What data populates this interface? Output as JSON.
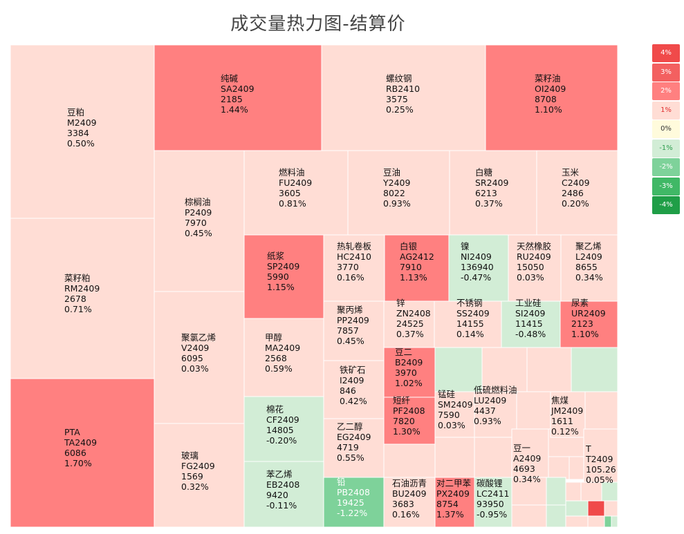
{
  "title": "成交量热力图-结算价",
  "colors": {
    "up4": "#f04a4a",
    "up3": "#f36060",
    "up2": "#ff8080",
    "up1": "#ffddd5",
    "zero": "#fffbdc",
    "down1": "#d2edd6",
    "down2": "#7ed29a",
    "down3": "#40b866",
    "down4": "#1f9e47"
  },
  "legend": [
    {
      "label": "4%",
      "color": "up4",
      "text": "#ffffff"
    },
    {
      "label": "3%",
      "color": "up3",
      "text": "#ffffff"
    },
    {
      "label": "2%",
      "color": "up2",
      "text": "#ffffff"
    },
    {
      "label": "1%",
      "color": "up1",
      "text": "#e03030"
    },
    {
      "label": "0%",
      "color": "zero",
      "text": "#333333"
    },
    {
      "label": "-1%",
      "color": "down1",
      "text": "#2f9e4f"
    },
    {
      "label": "-2%",
      "color": "down2",
      "text": "#ffffff"
    },
    {
      "label": "-3%",
      "color": "down3",
      "text": "#ffffff"
    },
    {
      "label": "-4%",
      "color": "down4",
      "text": "#ffffff"
    }
  ],
  "chart_data": {
    "type": "treemap",
    "title": "成交量热力图-结算价",
    "items": [
      {
        "name": "豆粕",
        "code": "M2409",
        "price": "3384",
        "change": "0.50%",
        "color": "up1"
      },
      {
        "name": "菜籽粕",
        "code": "RM2409",
        "price": "2678",
        "change": "0.71%",
        "color": "up1"
      },
      {
        "name": "PTA",
        "code": "TA2409",
        "price": "6086",
        "change": "1.70%",
        "color": "up2"
      },
      {
        "name": "纯碱",
        "code": "SA2409",
        "price": "2185",
        "change": "1.44%",
        "color": "up2"
      },
      {
        "name": "螺纹钢",
        "code": "RB2410",
        "price": "3575",
        "change": "0.25%",
        "color": "up1"
      },
      {
        "name": "菜籽油",
        "code": "OI2409",
        "price": "8708",
        "change": "1.10%",
        "color": "up2"
      },
      {
        "name": "棕榈油",
        "code": "P2409",
        "price": "7970",
        "change": "0.45%",
        "color": "up1"
      },
      {
        "name": "聚氯乙烯",
        "code": "V2409",
        "price": "6095",
        "change": "0.03%",
        "color": "up1"
      },
      {
        "name": "玻璃",
        "code": "FG2409",
        "price": "1569",
        "change": "0.32%",
        "color": "up1"
      },
      {
        "name": "燃料油",
        "code": "FU2409",
        "price": "3605",
        "change": "0.81%",
        "color": "up1"
      },
      {
        "name": "豆油",
        "code": "Y2409",
        "price": "8022",
        "change": "0.93%",
        "color": "up1"
      },
      {
        "name": "白糖",
        "code": "SR2409",
        "price": "6213",
        "change": "0.37%",
        "color": "up1"
      },
      {
        "name": "玉米",
        "code": "C2409",
        "price": "2486",
        "change": "0.20%",
        "color": "up1"
      },
      {
        "name": "纸浆",
        "code": "SP2409",
        "price": "5990",
        "change": "1.15%",
        "color": "up2"
      },
      {
        "name": "甲醇",
        "code": "MA2409",
        "price": "2568",
        "change": "0.59%",
        "color": "up1"
      },
      {
        "name": "棉花",
        "code": "CF2409",
        "price": "14805",
        "change": "-0.20%",
        "color": "down1"
      },
      {
        "name": "苯乙烯",
        "code": "EB2408",
        "price": "9420",
        "change": "-0.11%",
        "color": "down1"
      },
      {
        "name": "热轧卷板",
        "code": "HC2410",
        "price": "3770",
        "change": "0.16%",
        "color": "up1"
      },
      {
        "name": "白银",
        "code": "AG2412",
        "price": "7910",
        "change": "1.13%",
        "color": "up2"
      },
      {
        "name": "镍",
        "code": "NI2409",
        "price": "136940",
        "change": "-0.47%",
        "color": "down1"
      },
      {
        "name": "天然橡胶",
        "code": "RU2409",
        "price": "15050",
        "change": "0.03%",
        "color": "up1"
      },
      {
        "name": "聚乙烯",
        "code": "L2409",
        "price": "8655",
        "change": "0.34%",
        "color": "up1"
      },
      {
        "name": "聚丙烯",
        "code": "PP2409",
        "price": "7857",
        "change": "0.45%",
        "color": "up1"
      },
      {
        "name": "锌",
        "code": "ZN2408",
        "price": "24525",
        "change": "0.37%",
        "color": "up1"
      },
      {
        "name": "不锈钢",
        "code": "SS2409",
        "price": "14155",
        "change": "0.14%",
        "color": "up1"
      },
      {
        "name": "工业硅",
        "code": "SI2409",
        "price": "11415",
        "change": "-0.48%",
        "color": "down1"
      },
      {
        "name": "尿素",
        "code": "UR2409",
        "price": "2123",
        "change": "1.10%",
        "color": "up2"
      },
      {
        "name": "铁矿石",
        "code": "I2409",
        "price": "846",
        "change": "0.42%",
        "color": "up1"
      },
      {
        "name": "豆二",
        "code": "B2409",
        "price": "3970",
        "change": "1.02%",
        "color": "up2"
      },
      {
        "name": "短纤",
        "code": "PF2408",
        "price": "7820",
        "change": "1.30%",
        "color": "up2"
      },
      {
        "name": "锰硅",
        "code": "SM2409",
        "price": "7590",
        "change": "0.03%",
        "color": "up1"
      },
      {
        "name": "低硫燃料油",
        "code": "LU2409",
        "price": "4437",
        "change": "0.93%",
        "color": "up1"
      },
      {
        "name": "焦煤",
        "code": "JM2409",
        "price": "1611",
        "change": "0.12%",
        "color": "up1"
      },
      {
        "name": "乙二醇",
        "code": "EG2409",
        "price": "4719",
        "change": "0.55%",
        "color": "up1"
      },
      {
        "name": "豆一",
        "code": "A2409",
        "price": "4693",
        "change": "0.34%",
        "color": "up1"
      },
      {
        "name": "T",
        "code": "T2409",
        "price": "105.26",
        "change": "0.05%",
        "color": "up1"
      },
      {
        "name": "铅",
        "code": "PB2408",
        "price": "19425",
        "change": "-1.22%",
        "color": "down2"
      },
      {
        "name": "石油沥青",
        "code": "BU2409",
        "price": "3683",
        "change": "0.16%",
        "color": "up1"
      },
      {
        "name": "对二甲苯",
        "code": "PX2409",
        "price": "8754",
        "change": "1.37%",
        "color": "up2"
      },
      {
        "name": "碳酸锂",
        "code": "LC2411",
        "price": "93950",
        "change": "-0.95%",
        "color": "down1"
      }
    ]
  }
}
